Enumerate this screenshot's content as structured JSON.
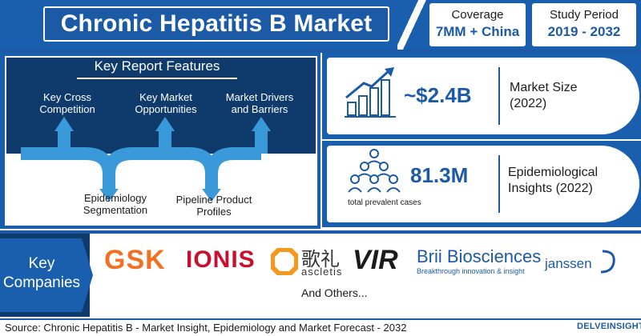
{
  "header": {
    "title": "Chronic Hepatitis B Market",
    "coverage_label": "Coverage",
    "coverage_value": "7MM + China",
    "study_label": "Study Period",
    "study_value": "2019 - 2032"
  },
  "features": {
    "title": "Key Report Features",
    "items": [
      {
        "line1": "Key Cross",
        "line2": "Competition"
      },
      {
        "line1": "Key Market",
        "line2": "Opportunities"
      },
      {
        "line1": "Market Drivers",
        "line2": "and Barriers"
      },
      {
        "line1": "Epidemiology",
        "line2": "Segmentation"
      },
      {
        "line1": "Pipeline Product",
        "line2": "Profiles"
      }
    ],
    "arrow_color": "#3a9ad9"
  },
  "stats": {
    "market_value": "~$2.4B",
    "market_label_1": "Market Size",
    "market_label_2": "(2022)",
    "epi_value": "81.3M",
    "epi_sub": "total prevalent cases",
    "epi_label_1": "Epidemiological",
    "epi_label_2": "Insights (2022)"
  },
  "companies": {
    "label_1": "Key",
    "label_2": "Companies",
    "logos": [
      {
        "text": "GSK",
        "color": "#f36f21"
      },
      {
        "text": "IONIS",
        "color": "#c8102e"
      },
      {
        "text": "歌礼",
        "sub": "ascletis",
        "color": "#333333"
      },
      {
        "text": "VIR",
        "color": "#1b1b1b"
      },
      {
        "text": "Brii Biosciences",
        "sub": "Breakthrough innovation & insight",
        "color": "#1c5aa6"
      },
      {
        "text": "janssen",
        "color": "#1c5aa6"
      }
    ],
    "others": "And Others..."
  },
  "footer": {
    "source": "Source: Chronic Hepatitis B - Market Insight, Epidemiology and Market Forecast - 2032",
    "logo": "DELVEINSIGHT"
  }
}
